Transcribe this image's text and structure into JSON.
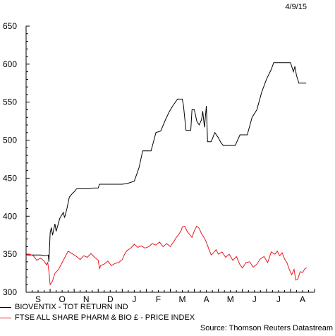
{
  "date_label": "4/9/15",
  "source": "Source: Thomson Reuters Datastream",
  "colors": {
    "bioventix": "#000000",
    "ftse": "#e8191f",
    "axis": "#000000"
  },
  "chart_data": {
    "type": "line",
    "title": "",
    "xlabel": "",
    "ylabel": "",
    "ylim": [
      300,
      650
    ],
    "yticks": [
      300,
      350,
      400,
      450,
      500,
      550,
      600,
      650
    ],
    "xlim": [
      0,
      12
    ],
    "months": [
      "S",
      "O",
      "N",
      "D",
      "J",
      "F",
      "M",
      "A",
      "M",
      "J",
      "J",
      "A"
    ],
    "grid": false,
    "legend": "bottom",
    "series": [
      {
        "name": "BIOVENTIX - TOT RETURN IND",
        "color": "#000000",
        "points": [
          [
            0.0,
            349
          ],
          [
            0.3,
            349
          ],
          [
            0.6,
            349
          ],
          [
            0.8,
            348
          ],
          [
            0.92,
            349
          ],
          [
            0.95,
            340
          ],
          [
            1.0,
            378
          ],
          [
            1.05,
            385
          ],
          [
            1.1,
            375
          ],
          [
            1.2,
            390
          ],
          [
            1.25,
            380
          ],
          [
            1.4,
            397
          ],
          [
            1.55,
            405
          ],
          [
            1.6,
            398
          ],
          [
            1.7,
            410
          ],
          [
            1.8,
            425
          ],
          [
            1.9,
            429
          ],
          [
            2.0,
            432
          ],
          [
            2.1,
            436
          ],
          [
            2.3,
            436
          ],
          [
            2.6,
            436
          ],
          [
            2.8,
            437
          ],
          [
            3.0,
            437
          ],
          [
            3.05,
            442
          ],
          [
            3.3,
            442
          ],
          [
            3.6,
            442
          ],
          [
            4.0,
            442
          ],
          [
            4.2,
            443
          ],
          [
            4.5,
            446
          ],
          [
            4.7,
            464
          ],
          [
            4.85,
            486
          ],
          [
            5.0,
            486
          ],
          [
            5.2,
            486
          ],
          [
            5.4,
            510
          ],
          [
            5.6,
            512
          ],
          [
            5.8,
            527
          ],
          [
            5.95,
            537
          ],
          [
            6.1,
            545
          ],
          [
            6.3,
            554
          ],
          [
            6.5,
            554
          ],
          [
            6.55,
            545
          ],
          [
            6.65,
            513
          ],
          [
            6.85,
            513
          ],
          [
            6.9,
            540
          ],
          [
            7.0,
            540
          ],
          [
            7.1,
            525
          ],
          [
            7.2,
            520
          ],
          [
            7.3,
            527
          ],
          [
            7.35,
            538
          ],
          [
            7.42,
            517
          ],
          [
            7.5,
            545
          ],
          [
            7.55,
            498
          ],
          [
            7.7,
            498
          ],
          [
            7.85,
            510
          ],
          [
            8.0,
            503
          ],
          [
            8.1,
            497
          ],
          [
            8.2,
            493
          ],
          [
            8.4,
            493
          ],
          [
            8.7,
            493
          ],
          [
            8.9,
            507
          ],
          [
            9.2,
            507
          ],
          [
            9.4,
            530
          ],
          [
            9.6,
            540
          ],
          [
            9.8,
            563
          ],
          [
            10.0,
            580
          ],
          [
            10.2,
            593
          ],
          [
            10.3,
            602
          ],
          [
            10.5,
            602
          ],
          [
            10.75,
            602
          ],
          [
            11.0,
            602
          ],
          [
            11.12,
            590
          ],
          [
            11.18,
            597
          ],
          [
            11.25,
            585
          ],
          [
            11.35,
            575
          ],
          [
            11.5,
            575
          ],
          [
            11.65,
            575
          ]
        ]
      },
      {
        "name": "FTSE ALL SHARE PHARM & BIO £ - PRICE INDEX",
        "color": "#e8191f",
        "points": [
          [
            0.0,
            349
          ],
          [
            0.15,
            350
          ],
          [
            0.3,
            348
          ],
          [
            0.45,
            342
          ],
          [
            0.6,
            345
          ],
          [
            0.75,
            341
          ],
          [
            0.85,
            336
          ],
          [
            0.9,
            339
          ],
          [
            0.95,
            327
          ],
          [
            1.0,
            310
          ],
          [
            1.05,
            312
          ],
          [
            1.1,
            315
          ],
          [
            1.2,
            325
          ],
          [
            1.35,
            330
          ],
          [
            1.5,
            339
          ],
          [
            1.6,
            345
          ],
          [
            1.75,
            354
          ],
          [
            1.9,
            351
          ],
          [
            2.0,
            349
          ],
          [
            2.1,
            347
          ],
          [
            2.25,
            343
          ],
          [
            2.4,
            348
          ],
          [
            2.55,
            346
          ],
          [
            2.7,
            351
          ],
          [
            2.85,
            346
          ],
          [
            3.0,
            342
          ],
          [
            3.05,
            331
          ],
          [
            3.1,
            335
          ],
          [
            3.25,
            337
          ],
          [
            3.4,
            341
          ],
          [
            3.55,
            335
          ],
          [
            3.7,
            338
          ],
          [
            3.85,
            339
          ],
          [
            4.0,
            343
          ],
          [
            4.1,
            350
          ],
          [
            4.2,
            355
          ],
          [
            4.35,
            358
          ],
          [
            4.5,
            363
          ],
          [
            4.65,
            359
          ],
          [
            4.8,
            361
          ],
          [
            4.95,
            358
          ],
          [
            5.1,
            360
          ],
          [
            5.25,
            364
          ],
          [
            5.4,
            362
          ],
          [
            5.55,
            366
          ],
          [
            5.7,
            360
          ],
          [
            5.85,
            364
          ],
          [
            6.0,
            360
          ],
          [
            6.15,
            367
          ],
          [
            6.25,
            372
          ],
          [
            6.35,
            376
          ],
          [
            6.45,
            381
          ],
          [
            6.5,
            386
          ],
          [
            6.6,
            387
          ],
          [
            6.7,
            380
          ],
          [
            6.8,
            376
          ],
          [
            6.9,
            372
          ],
          [
            7.0,
            381
          ],
          [
            7.1,
            387
          ],
          [
            7.2,
            384
          ],
          [
            7.3,
            377
          ],
          [
            7.4,
            372
          ],
          [
            7.5,
            366
          ],
          [
            7.6,
            357
          ],
          [
            7.7,
            349
          ],
          [
            7.8,
            352
          ],
          [
            7.9,
            356
          ],
          [
            8.0,
            350
          ],
          [
            8.15,
            353
          ],
          [
            8.3,
            346
          ],
          [
            8.45,
            350
          ],
          [
            8.6,
            342
          ],
          [
            8.75,
            347
          ],
          [
            8.9,
            336
          ],
          [
            9.0,
            332
          ],
          [
            9.15,
            339
          ],
          [
            9.3,
            340
          ],
          [
            9.45,
            333
          ],
          [
            9.6,
            337
          ],
          [
            9.75,
            344
          ],
          [
            9.9,
            347
          ],
          [
            10.05,
            339
          ],
          [
            10.2,
            353
          ],
          [
            10.35,
            350
          ],
          [
            10.45,
            354
          ],
          [
            10.55,
            348
          ],
          [
            10.65,
            352
          ],
          [
            10.75,
            344
          ],
          [
            10.85,
            339
          ],
          [
            10.95,
            330
          ],
          [
            11.05,
            323
          ],
          [
            11.15,
            330
          ],
          [
            11.22,
            316
          ],
          [
            11.3,
            317
          ],
          [
            11.4,
            327
          ],
          [
            11.5,
            326
          ],
          [
            11.6,
            331
          ],
          [
            11.67,
            332
          ]
        ]
      }
    ]
  }
}
